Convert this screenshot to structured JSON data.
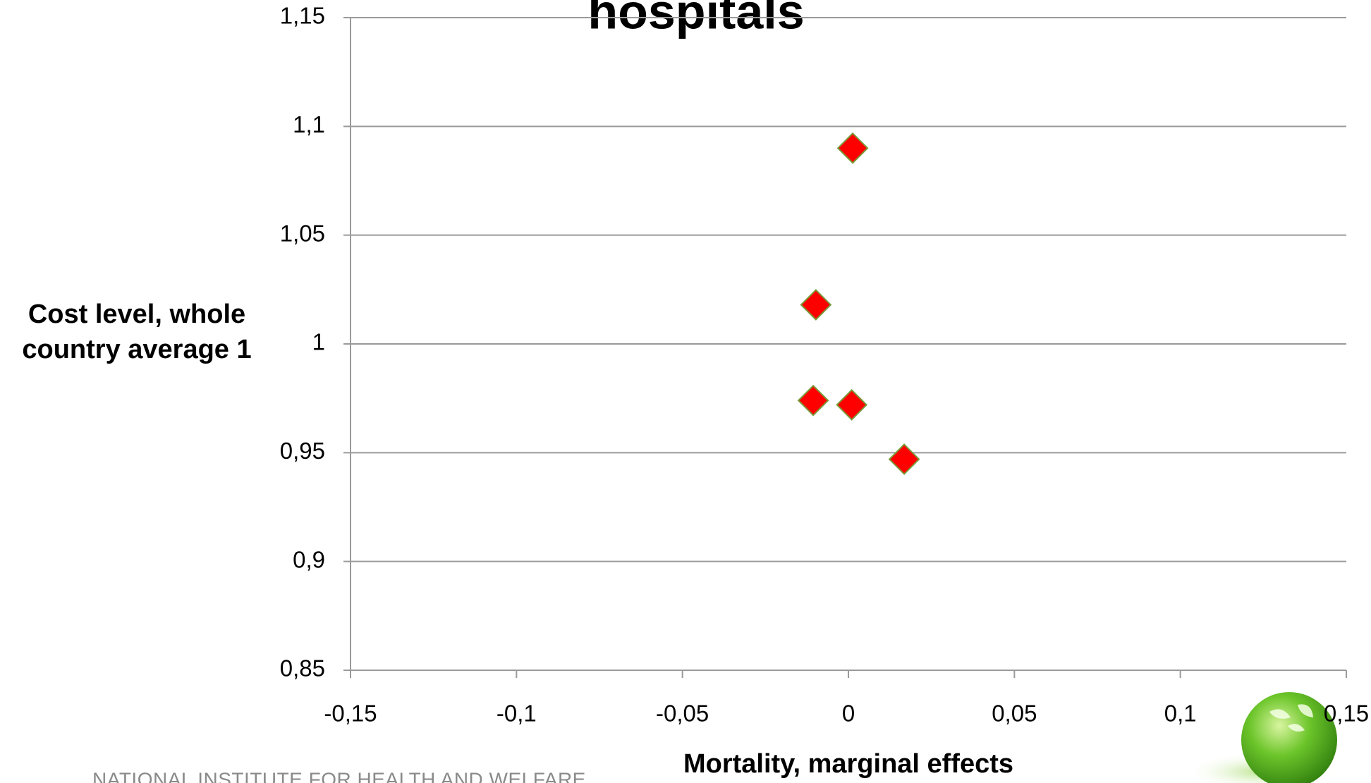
{
  "chart_data": {
    "type": "scatter",
    "title": "hospitals",
    "xlabel": "Mortality,  marginal effects",
    "ylabel": "Cost level, whole country average 1",
    "x": [
      0.0013,
      -0.0098,
      -0.0106,
      0.001,
      0.0168
    ],
    "values": [
      1.09,
      1.018,
      0.974,
      0.972,
      0.947
    ],
    "color": "#ff0000",
    "xlim": [
      -0.15,
      0.15
    ],
    "ylim": [
      0.85,
      1.15
    ],
    "xticks": [
      {
        "value": -0.15,
        "label": "-0,15"
      },
      {
        "value": -0.1,
        "label": "-0,1"
      },
      {
        "value": -0.05,
        "label": "-0,05"
      },
      0,
      {
        "value": 0.05,
        "label": "0,05"
      },
      {
        "value": 0.1,
        "label": "0,1"
      },
      {
        "value": 0.15,
        "label": "0,15"
      }
    ],
    "yticks": [
      {
        "value": 0.85,
        "label": "0,85"
      },
      {
        "value": 0.9,
        "label": "0,9"
      },
      {
        "value": 0.95,
        "label": "0,95"
      },
      1,
      {
        "value": 1.05,
        "label": "1,05"
      },
      {
        "value": 1.1,
        "label": "1,1"
      },
      {
        "value": 1.15,
        "label": "1,15"
      }
    ],
    "grid": true,
    "footer": "NATIONAL INSTITUTE FOR HEALTH AND WELFARE"
  }
}
